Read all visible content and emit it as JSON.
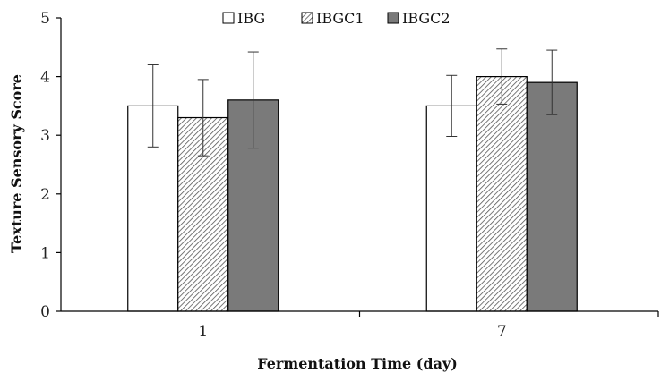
{
  "chart_data": {
    "type": "bar",
    "title": "",
    "xlabel": "Fermentation Time (day)",
    "ylabel": "Texture Sensory Score",
    "categories": [
      "1",
      "7"
    ],
    "ylim": [
      0,
      5
    ],
    "yticks": [
      "0",
      "1",
      "2",
      "3",
      "4",
      "5"
    ],
    "grid": false,
    "legend_position": "top-center",
    "series": [
      {
        "name": "IBG",
        "pattern": "solid-white",
        "color": "#ffffff",
        "values": [
          3.5,
          3.5
        ],
        "errors": [
          0.7,
          0.52
        ]
      },
      {
        "name": "IBGC1",
        "pattern": "diagonal-hatch",
        "color": "#6d6d6d",
        "values": [
          3.3,
          4.0
        ],
        "errors": [
          0.65,
          0.47
        ]
      },
      {
        "name": "IBGC2",
        "pattern": "solid-gray",
        "color": "#7a7a7a",
        "values": [
          3.6,
          3.9
        ],
        "errors": [
          0.82,
          0.55
        ]
      }
    ]
  }
}
